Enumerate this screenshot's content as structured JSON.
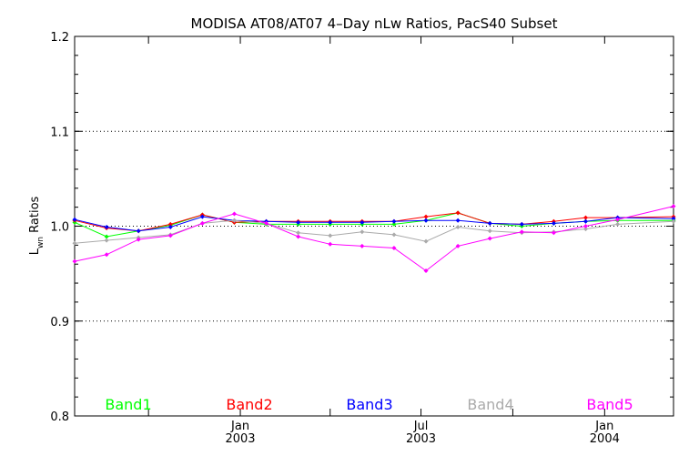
{
  "chart_data": {
    "type": "line",
    "title": "MODISA AT08/AT07 4–Day nLw Ratios, PacS40 Subset",
    "ylabel": {
      "main": "L",
      "sub": "wn",
      "rest": " Ratios"
    },
    "ylim": [
      0.8,
      1.2
    ],
    "xlim": [
      "2002-07-19",
      "2004-03-10"
    ],
    "yticks": [
      "0.8",
      "0.9",
      "1.0",
      "1.1",
      "1.2"
    ],
    "ytick_values": [
      0.8,
      0.9,
      1.0,
      1.1,
      1.2
    ],
    "xticks": [
      {
        "date": "2003-01-01",
        "month": "Jan",
        "year": "2003"
      },
      {
        "date": "2003-07-01",
        "month": "Jul",
        "year": "2003"
      },
      {
        "date": "2004-01-01",
        "month": "Jan",
        "year": "2004"
      }
    ],
    "xminor": [
      "2002-10-01",
      "2003-04-01",
      "2003-10-01"
    ],
    "gridlines": [
      0.9,
      1.1
    ],
    "refline": 1.0,
    "series": [
      {
        "name": "Band1",
        "color": "#00ff00",
        "points": [
          [
            "2002-07-19",
            1.004
          ],
          [
            "2002-08-20",
            0.989
          ],
          [
            "2002-09-21",
            0.995
          ],
          [
            "2002-10-23",
            1.001
          ],
          [
            "2002-11-24",
            1.012
          ],
          [
            "2002-12-26",
            1.004
          ],
          [
            "2003-01-27",
            1.002
          ],
          [
            "2003-02-28",
            1.002
          ],
          [
            "2003-04-01",
            1.002
          ],
          [
            "2003-05-03",
            1.002
          ],
          [
            "2003-06-04",
            1.002
          ],
          [
            "2003-07-06",
            1.006
          ],
          [
            "2003-08-07",
            1.014
          ],
          [
            "2003-09-08",
            1.003
          ],
          [
            "2003-10-10",
            1.0
          ],
          [
            "2003-11-11",
            1.003
          ],
          [
            "2003-12-13",
            1.005
          ],
          [
            "2004-01-14",
            1.006
          ],
          [
            "2004-03-10",
            1.006
          ]
        ]
      },
      {
        "name": "Band2",
        "color": "#ff0000",
        "points": [
          [
            "2002-07-19",
            1.006
          ],
          [
            "2002-08-20",
            0.998
          ],
          [
            "2002-09-21",
            0.995
          ],
          [
            "2002-10-23",
            1.002
          ],
          [
            "2002-11-24",
            1.012
          ],
          [
            "2002-12-26",
            1.004
          ],
          [
            "2003-01-27",
            1.005
          ],
          [
            "2003-02-28",
            1.005
          ],
          [
            "2003-04-01",
            1.005
          ],
          [
            "2003-05-03",
            1.005
          ],
          [
            "2003-06-04",
            1.005
          ],
          [
            "2003-07-06",
            1.01
          ],
          [
            "2003-08-07",
            1.014
          ],
          [
            "2003-09-08",
            1.003
          ],
          [
            "2003-10-10",
            1.002
          ],
          [
            "2003-11-11",
            1.005
          ],
          [
            "2003-12-13",
            1.009
          ],
          [
            "2004-01-14",
            1.009
          ],
          [
            "2004-03-10",
            1.01
          ]
        ]
      },
      {
        "name": "Band3",
        "color": "#0000ff",
        "points": [
          [
            "2002-07-19",
            1.007
          ],
          [
            "2002-08-20",
            0.999
          ],
          [
            "2002-09-21",
            0.995
          ],
          [
            "2002-10-23",
            0.999
          ],
          [
            "2002-11-24",
            1.01
          ],
          [
            "2002-12-26",
            1.006
          ],
          [
            "2003-01-27",
            1.005
          ],
          [
            "2003-02-28",
            1.004
          ],
          [
            "2003-04-01",
            1.004
          ],
          [
            "2003-05-03",
            1.004
          ],
          [
            "2003-06-04",
            1.005
          ],
          [
            "2003-07-06",
            1.006
          ],
          [
            "2003-08-07",
            1.006
          ],
          [
            "2003-09-08",
            1.003
          ],
          [
            "2003-10-10",
            1.002
          ],
          [
            "2003-11-11",
            1.003
          ],
          [
            "2003-12-13",
            1.005
          ],
          [
            "2004-01-14",
            1.009
          ],
          [
            "2004-03-10",
            1.008
          ]
        ]
      },
      {
        "name": "Band4",
        "color": "#aaaaaa",
        "points": [
          [
            "2002-07-19",
            0.982
          ],
          [
            "2002-08-20",
            0.985
          ],
          [
            "2002-09-21",
            0.988
          ],
          [
            "2002-10-23",
            0.991
          ],
          [
            "2002-11-24",
            1.003
          ],
          [
            "2002-12-26",
            1.006
          ],
          [
            "2003-01-27",
            1.003
          ],
          [
            "2003-02-28",
            0.993
          ],
          [
            "2003-04-01",
            0.99
          ],
          [
            "2003-05-03",
            0.994
          ],
          [
            "2003-06-04",
            0.991
          ],
          [
            "2003-07-06",
            0.984
          ],
          [
            "2003-08-07",
            0.999
          ],
          [
            "2003-09-08",
            0.995
          ],
          [
            "2003-10-10",
            0.993
          ],
          [
            "2003-11-11",
            0.994
          ],
          [
            "2003-12-13",
            0.997
          ],
          [
            "2004-01-14",
            1.002
          ],
          [
            "2004-03-10",
            1.005
          ]
        ]
      },
      {
        "name": "Band5",
        "color": "#ff00ff",
        "points": [
          [
            "2002-07-19",
            0.963
          ],
          [
            "2002-08-20",
            0.97
          ],
          [
            "2002-09-21",
            0.986
          ],
          [
            "2002-10-23",
            0.99
          ],
          [
            "2002-11-24",
            1.003
          ],
          [
            "2002-12-26",
            1.013
          ],
          [
            "2003-01-27",
            1.003
          ],
          [
            "2003-02-28",
            0.989
          ],
          [
            "2003-04-01",
            0.981
          ],
          [
            "2003-05-03",
            0.979
          ],
          [
            "2003-06-04",
            0.977
          ],
          [
            "2003-07-06",
            0.953
          ],
          [
            "2003-08-07",
            0.979
          ],
          [
            "2003-09-08",
            0.987
          ],
          [
            "2003-10-10",
            0.994
          ],
          [
            "2003-11-11",
            0.993
          ],
          [
            "2003-12-13",
            1.0
          ],
          [
            "2004-01-14",
            1.007
          ],
          [
            "2004-03-10",
            1.021
          ]
        ]
      }
    ]
  }
}
